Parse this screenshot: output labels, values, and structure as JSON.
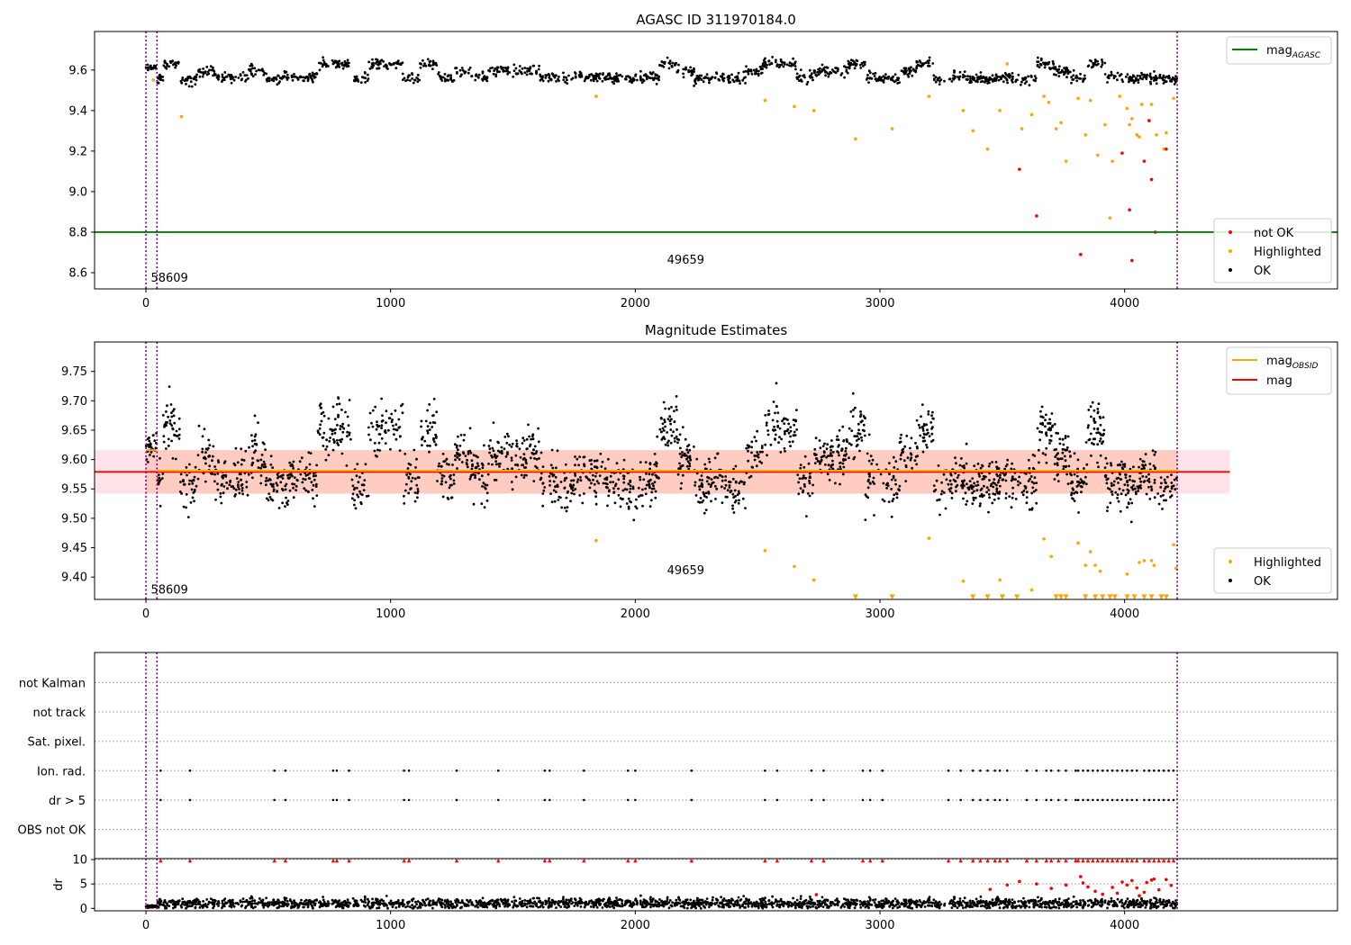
{
  "figure": {
    "width": 1500,
    "height": 1050
  },
  "chart_data": [
    {
      "type": "scatter",
      "title": "AGASC ID 311970184.0",
      "xlabel": "",
      "ylabel": "",
      "xlim": [
        -210,
        4870
      ],
      "ylim": [
        8.52,
        9.79
      ],
      "xticks": [
        0,
        1000,
        2000,
        3000,
        4000
      ],
      "yticks": [
        8.6,
        8.8,
        9.0,
        9.2,
        9.4,
        9.6
      ],
      "ytick_labels": [
        "8.6",
        "8.8",
        "9.0",
        "9.2",
        "9.4",
        "9.6"
      ],
      "hlines": [
        {
          "y": 8.8,
          "color": "#008000",
          "label": "mag_AGASC"
        }
      ],
      "vlines": [
        {
          "x": 0,
          "color": "#800080",
          "style": "dotted"
        },
        {
          "x": 45,
          "color": "#800080",
          "style": "dotted"
        },
        {
          "x": 4215,
          "color": "#800080",
          "style": "dotted"
        }
      ],
      "annotations": [
        {
          "text": "58609",
          "x": 20,
          "y": 8.555
        },
        {
          "text": "49659",
          "x": 2130,
          "y": 8.645
        }
      ],
      "legend": {
        "placement": "top-right",
        "entries": [
          {
            "label": "mag",
            "subscript": "AGASC",
            "color": "#008000",
            "kind": "line"
          }
        ]
      },
      "legend2": {
        "placement": "lower-right",
        "entries": [
          {
            "label": "not OK",
            "color": "#ff0000",
            "kind": "marker"
          },
          {
            "label": "Highlighted",
            "color": "#ffa500",
            "kind": "marker"
          },
          {
            "label": "OK",
            "color": "#000000",
            "kind": "marker"
          }
        ]
      },
      "series": [
        {
          "name": "OK",
          "color": "#000000",
          "trend": "ok_mag",
          "x_range": [
            0,
            4215
          ],
          "n": 1500
        },
        {
          "name": "Highlighted",
          "color": "#ffa500",
          "points": [
            [
              30,
              9.55
            ],
            [
              145,
              9.37
            ],
            [
              1840,
              9.47
            ],
            [
              2530,
              9.45
            ],
            [
              2650,
              9.42
            ],
            [
              2730,
              9.4
            ],
            [
              2900,
              9.26
            ],
            [
              3050,
              9.31
            ],
            [
              3200,
              9.47
            ],
            [
              3340,
              9.4
            ],
            [
              3380,
              9.3
            ],
            [
              3440,
              9.21
            ],
            [
              3490,
              9.4
            ],
            [
              3520,
              9.63
            ],
            [
              3580,
              9.31
            ],
            [
              3620,
              9.38
            ],
            [
              3670,
              9.47
            ],
            [
              3690,
              9.44
            ],
            [
              3720,
              9.31
            ],
            [
              3740,
              9.34
            ],
            [
              3760,
              9.15
            ],
            [
              3810,
              9.46
            ],
            [
              3840,
              9.28
            ],
            [
              3860,
              9.45
            ],
            [
              3890,
              9.18
            ],
            [
              3920,
              9.33
            ],
            [
              3940,
              8.87
            ],
            [
              3950,
              9.15
            ],
            [
              3980,
              9.47
            ],
            [
              4010,
              9.41
            ],
            [
              4020,
              9.33
            ],
            [
              4030,
              9.36
            ],
            [
              4050,
              9.28
            ],
            [
              4060,
              9.27
            ],
            [
              4070,
              9.43
            ],
            [
              4100,
              9.35
            ],
            [
              4110,
              9.43
            ],
            [
              4130,
              9.28
            ],
            [
              4160,
              9.21
            ],
            [
              4170,
              9.29
            ],
            [
              4200,
              9.46
            ]
          ]
        },
        {
          "name": "not OK",
          "color": "#ff0000",
          "points": [
            [
              3570,
              9.11
            ],
            [
              3640,
              8.88
            ],
            [
              3820,
              8.69
            ],
            [
              3990,
              9.19
            ],
            [
              4020,
              8.91
            ],
            [
              4030,
              8.66
            ],
            [
              4080,
              9.15
            ],
            [
              4100,
              9.35
            ],
            [
              4110,
              9.06
            ],
            [
              4125,
              8.8
            ],
            [
              4170,
              9.21
            ]
          ]
        }
      ]
    },
    {
      "type": "scatter",
      "title": "Magnitude Estimates",
      "xlabel": "",
      "ylabel": "",
      "xlim": [
        -210,
        4870
      ],
      "ylim": [
        9.362,
        9.8
      ],
      "xticks": [
        0,
        1000,
        2000,
        3000,
        4000
      ],
      "yticks": [
        9.4,
        9.45,
        9.5,
        9.55,
        9.6,
        9.65,
        9.7,
        9.75
      ],
      "ytick_labels": [
        "9.40",
        "9.45",
        "9.50",
        "9.55",
        "9.60",
        "9.65",
        "9.70",
        "9.75"
      ],
      "hlines": [
        {
          "y": 9.579,
          "color": "#ff0000",
          "label": "mag",
          "x_range": [
            -210,
            4430
          ]
        }
      ],
      "bands": [
        {
          "y0": 9.542,
          "y1": 9.616,
          "x_range": [
            -210,
            4430
          ],
          "color": "#ffc0cb",
          "opacity": 0.45
        },
        {
          "y0": 9.542,
          "y1": 9.616,
          "x_range": [
            0,
            4215
          ],
          "color": "#ffa07a",
          "opacity": 0.35
        }
      ],
      "segments": [
        {
          "x0": 0,
          "x1": 45,
          "y": 9.616,
          "color": "#ffa500",
          "label": "mag_OBSID"
        },
        {
          "x0": 45,
          "x1": 4215,
          "y": 9.581,
          "color": "#ffa500"
        }
      ],
      "vlines": [
        {
          "x": 0,
          "color": "#800080",
          "style": "dotted"
        },
        {
          "x": 45,
          "color": "#800080",
          "style": "dotted"
        },
        {
          "x": 4215,
          "color": "#800080",
          "style": "dotted"
        }
      ],
      "annotations": [
        {
          "text": "58609",
          "x": 20,
          "y": 9.372
        },
        {
          "text": "49659",
          "x": 2130,
          "y": 9.405
        }
      ],
      "legend": {
        "placement": "top-right",
        "entries": [
          {
            "label": "mag",
            "subscript": "OBSID",
            "color": "#ffa500",
            "kind": "line"
          },
          {
            "label": "mag",
            "subscript": "",
            "color": "#ff0000",
            "kind": "line"
          }
        ]
      },
      "legend2": {
        "placement": "lower-right",
        "entries": [
          {
            "label": "Highlighted",
            "color": "#ffa500",
            "kind": "marker"
          },
          {
            "label": "OK",
            "color": "#000000",
            "kind": "marker"
          }
        ]
      },
      "series": [
        {
          "name": "OK",
          "color": "#000000",
          "trend": "est_mag",
          "x_range": [
            0,
            4215
          ],
          "n": 2200
        },
        {
          "name": "Highlighted",
          "color": "#ffa500",
          "points": [
            [
              1840,
              9.462
            ],
            [
              2530,
              9.445
            ],
            [
              2650,
              9.418
            ],
            [
              2730,
              9.395
            ],
            [
              3200,
              9.466
            ],
            [
              3340,
              9.393
            ],
            [
              3490,
              9.395
            ],
            [
              3620,
              9.378
            ],
            [
              3670,
              9.465
            ],
            [
              3700,
              9.435
            ],
            [
              3810,
              9.458
            ],
            [
              3840,
              9.42
            ],
            [
              3860,
              9.443
            ],
            [
              3880,
              9.42
            ],
            [
              3900,
              9.41
            ],
            [
              4010,
              9.405
            ],
            [
              4060,
              9.425
            ],
            [
              4080,
              9.428
            ],
            [
              4110,
              9.428
            ],
            [
              4120,
              9.42
            ],
            [
              4200,
              9.455
            ],
            [
              4210,
              9.415
            ]
          ]
        },
        {
          "name": "Highlighted (clipped)",
          "color": "#ffa500",
          "marker": "triangle-down",
          "y": 9.366,
          "xs": [
            2900,
            3050,
            3380,
            3440,
            3500,
            3560,
            3720,
            3740,
            3760,
            3840,
            3880,
            3910,
            3940,
            3960,
            4010,
            4040,
            4080,
            4110,
            4150,
            4170
          ]
        }
      ]
    },
    {
      "type": "scatter",
      "title": "",
      "xlabel": "",
      "ylabel": "",
      "xlim": [
        -210,
        4870
      ],
      "categories": [
        "OBS not OK",
        "dr > 5",
        "Ion. rad.",
        "Sat. pixel.",
        "not track",
        "not Kalman"
      ],
      "xticks": [],
      "vlines": [
        {
          "x": 0,
          "color": "#800080",
          "style": "dotted"
        },
        {
          "x": 45,
          "color": "#800080",
          "style": "dotted"
        },
        {
          "x": 4215,
          "color": "#800080",
          "style": "dotted"
        }
      ],
      "series": [
        {
          "name": "dr > 5",
          "color": "#000000",
          "x": [
            60,
            180,
            525,
            570,
            765,
            780,
            830,
            1055,
            1075,
            1270,
            1440,
            1630,
            1650,
            1790,
            1970,
            2000,
            2230,
            2530,
            2580,
            2720,
            2770,
            2930,
            2960,
            3010,
            3280,
            3330,
            3380,
            3410,
            3440,
            3470,
            3490,
            3520,
            3600,
            3640,
            3680,
            3700,
            3730,
            3760,
            3800,
            3810,
            3830,
            3850,
            3870,
            3890,
            3910,
            3930,
            3950,
            3970,
            3990,
            4010,
            4030,
            4050,
            4080,
            4100,
            4120,
            4140,
            4160,
            4180,
            4200
          ]
        },
        {
          "name": "Ion. rad.",
          "color": "#000000",
          "x": [
            60,
            180,
            525,
            570,
            765,
            780,
            830,
            1055,
            1075,
            1270,
            1440,
            1630,
            1650,
            1790,
            1970,
            2000,
            2230,
            2530,
            2580,
            2720,
            2770,
            2930,
            2960,
            3010,
            3280,
            3330,
            3380,
            3410,
            3440,
            3470,
            3490,
            3520,
            3600,
            3640,
            3680,
            3700,
            3730,
            3760,
            3800,
            3810,
            3830,
            3850,
            3870,
            3890,
            3910,
            3930,
            3950,
            3970,
            3990,
            4010,
            4030,
            4050,
            4080,
            4100,
            4120,
            4140,
            4160,
            4180,
            4200
          ]
        }
      ]
    },
    {
      "type": "scatter",
      "title": "",
      "xlabel": "",
      "ylabel": "dr",
      "xlim": [
        -210,
        4870
      ],
      "ylim": [
        -0.5,
        10.2
      ],
      "xticks": [
        0,
        1000,
        2000,
        3000,
        4000
      ],
      "yticks": [
        0,
        5,
        10
      ],
      "ytick_labels": [
        "0",
        "5",
        "10"
      ],
      "vlines": [
        {
          "x": 0,
          "color": "#800080",
          "style": "dotted"
        },
        {
          "x": 45,
          "color": "#800080",
          "style": "dotted"
        },
        {
          "x": 4215,
          "color": "#800080",
          "style": "dotted"
        }
      ],
      "series": [
        {
          "name": "dr",
          "color": "#000000",
          "trend": "dr",
          "x_range": [
            0,
            4215
          ],
          "n": 2200
        },
        {
          "name": "dr > 5 (clipped)",
          "color": "#ff0000",
          "marker": "triangle-up",
          "y": 9.8,
          "xs": [
            60,
            180,
            525,
            570,
            765,
            780,
            830,
            1055,
            1075,
            1270,
            1440,
            1630,
            1650,
            1790,
            1970,
            2000,
            2230,
            2530,
            2580,
            2720,
            2770,
            2930,
            2960,
            3010,
            3280,
            3330,
            3380,
            3410,
            3440,
            3470,
            3490,
            3520,
            3600,
            3640,
            3680,
            3700,
            3730,
            3760,
            3800,
            3810,
            3830,
            3850,
            3870,
            3890,
            3910,
            3930,
            3950,
            3970,
            3990,
            4010,
            4030,
            4050,
            4080,
            4100,
            4120,
            4140,
            4160,
            4180,
            4200
          ]
        },
        {
          "name": "dr (red)",
          "color": "#ff0000",
          "points": [
            [
              2740,
              2.8
            ],
            [
              3450,
              3.9
            ],
            [
              3520,
              4.8
            ],
            [
              3570,
              5.5
            ],
            [
              3640,
              5.0
            ],
            [
              3700,
              4.1
            ],
            [
              3760,
              4.8
            ],
            [
              3820,
              6.5
            ],
            [
              3830,
              5.2
            ],
            [
              3850,
              4.4
            ],
            [
              3880,
              3.5
            ],
            [
              3910,
              2.9
            ],
            [
              3950,
              4.3
            ],
            [
              3970,
              3.1
            ],
            [
              3990,
              5.4
            ],
            [
              4010,
              4.8
            ],
            [
              4030,
              5.7
            ],
            [
              4050,
              4.2
            ],
            [
              4060,
              2.6
            ],
            [
              4080,
              3.3
            ],
            [
              4090,
              5.3
            ],
            [
              4110,
              5.8
            ],
            [
              4120,
              6.0
            ],
            [
              4140,
              3.8
            ],
            [
              4170,
              5.9
            ],
            [
              4190,
              4.7
            ]
          ]
        }
      ]
    }
  ]
}
